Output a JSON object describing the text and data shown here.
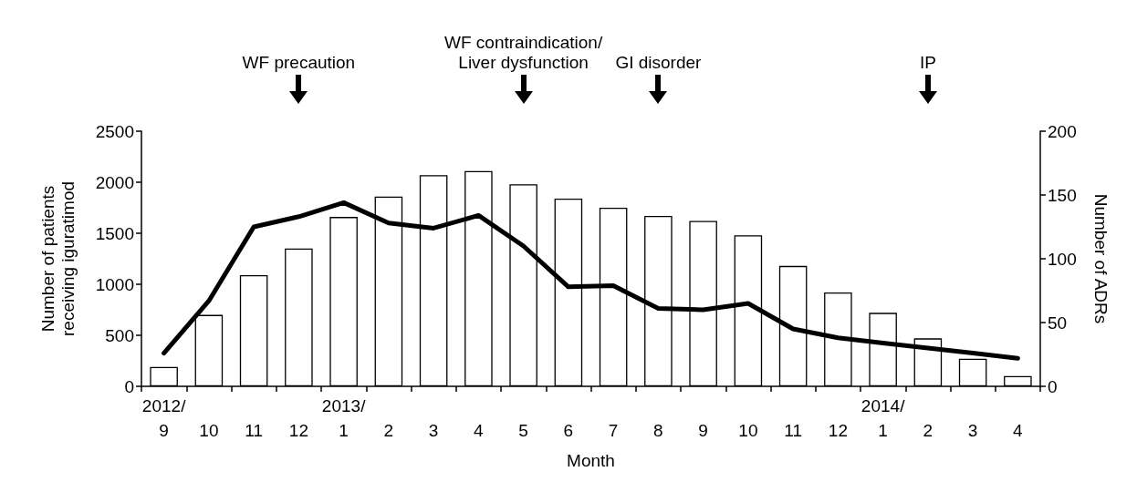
{
  "chart_data": {
    "type": "bar",
    "categories": [
      "2012/\n9",
      "10",
      "11",
      "12",
      "2013/\n1",
      "2",
      "3",
      "4",
      "5",
      "6",
      "7",
      "8",
      "9",
      "10",
      "11",
      "12",
      "2014/\n1",
      "2",
      "3",
      "4"
    ],
    "series": [
      {
        "color": "#ffffff",
        "values": [
          190,
          700,
          1090,
          1350,
          1660,
          1860,
          2070,
          2110,
          1980,
          1840,
          1750,
          1670,
          1620,
          1480,
          1180,
          920,
          720,
          470,
          270,
          100
        ]
      },
      {
        "type": "line",
        "axis": "y2",
        "color": "#000000",
        "values": [
          26,
          67,
          125,
          133,
          144,
          128,
          124,
          134,
          110,
          78,
          79,
          61,
          60,
          65,
          45,
          38,
          34,
          30,
          26,
          22
        ]
      }
    ],
    "xlabel": "Month",
    "ylabel": "Number of patients\nreceiving iguratimod",
    "y2label": "Number of ADRs",
    "ylim": [
      0,
      2500
    ],
    "yticks": [
      0,
      500,
      1000,
      1500,
      2000,
      2500
    ],
    "y2lim": [
      0,
      200
    ],
    "y2ticks": [
      0,
      50,
      100,
      150,
      200
    ],
    "annotations": [
      "WF precaution",
      "WF contraindication/\nLiver dysfunction",
      "GI disorder",
      "IP"
    ],
    "grid": false,
    "marker": "none",
    "line_style": "solid"
  }
}
